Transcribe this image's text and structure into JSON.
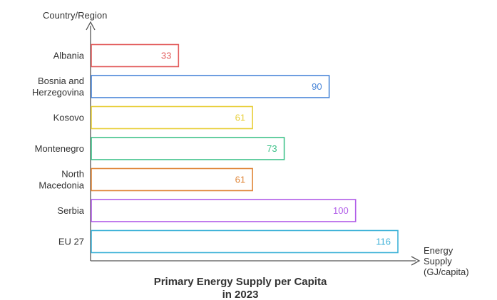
{
  "chart_data": {
    "type": "bar",
    "orientation": "horizontal",
    "title": "Primary Energy Supply per Capita in 2023",
    "title_lines": [
      "Primary Energy Supply per Capita",
      "in 2023"
    ],
    "ylabel": "Country/Region",
    "xlabel": "Energy Supply (GJ/capita)",
    "xlabel_lines": [
      "Energy",
      "Supply",
      "(GJ/capita)"
    ],
    "categories": [
      "Albania",
      "Bosnia and Herzegovina",
      "Kosovo",
      "Montenegro",
      "North Macedonia",
      "Serbia",
      "EU 27"
    ],
    "category_lines": [
      [
        "Albania"
      ],
      [
        "Bosnia and",
        "Herzegovina"
      ],
      [
        "Kosovo"
      ],
      [
        "Montenegro"
      ],
      [
        "North",
        "Macedonia"
      ],
      [
        "Serbia"
      ],
      [
        "EU 27"
      ]
    ],
    "values": [
      33,
      90,
      61,
      73,
      61,
      100,
      116
    ],
    "colors": [
      "#e35d5d",
      "#4a86d8",
      "#e8cf3a",
      "#3fc28a",
      "#e0873a",
      "#b05ce8",
      "#3fb2d8"
    ],
    "xlim": [
      0,
      116
    ],
    "grid": false,
    "legend": "none"
  }
}
